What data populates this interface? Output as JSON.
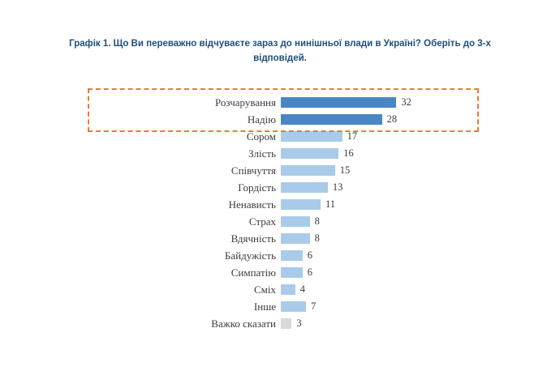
{
  "title": "Графік 1. Що Ви переважно відчуваєте зараз до нинішньої влади в Україні? Оберіть до 3-х відповідей.",
  "chart_data": {
    "type": "bar",
    "orientation": "horizontal",
    "title": "Графік 1. Що Ви переважно відчуваєте зараз до нинішньої влади в Україні? Оберіть до 3-х відповідей.",
    "categories": [
      "Розчарування",
      "Надію",
      "Сором",
      "Злість",
      "Співчуття",
      "Гордість",
      "Ненависть",
      "Страх",
      "Вдячність",
      "Байдужість",
      "Симпатію",
      "Сміх",
      "Інше",
      "Важко сказати"
    ],
    "values": [
      32,
      28,
      17,
      16,
      15,
      13,
      11,
      8,
      8,
      6,
      6,
      4,
      7,
      3
    ],
    "highlighted": [
      "Розчарування",
      "Надію"
    ],
    "xlim": [
      0,
      34
    ],
    "grid": false,
    "legend": "none",
    "data_labels": true,
    "colors": {
      "highlight_bar": "#4a86c4",
      "default_bar": "#a9cbe9",
      "last_bar": "#d9d9d9",
      "highlight_box_border": "#e8793a",
      "title_text": "#1f4e79"
    }
  }
}
